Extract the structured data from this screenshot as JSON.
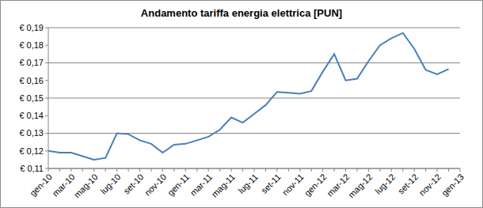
{
  "chart_data": {
    "type": "line",
    "title": "Andamento tariffa energia elettrica [PUN]",
    "categories": [
      "gen-10",
      null,
      "mar-10",
      null,
      "mag-10",
      null,
      "lug-10",
      null,
      "set-10",
      null,
      "nov-10",
      null,
      "gen-11",
      null,
      "mar-11",
      null,
      "mag-11",
      null,
      "lug-11",
      null,
      "set-11",
      null,
      "nov-11",
      null,
      "gen-12",
      null,
      "mar-12",
      null,
      "mag-12",
      null,
      "lug-12",
      null,
      "set-12",
      null,
      "nov-12",
      null,
      "gen-13"
    ],
    "values": [
      0.12,
      0.119,
      0.119,
      0.117,
      0.115,
      0.116,
      0.13,
      0.1295,
      0.126,
      0.124,
      0.119,
      0.1235,
      0.124,
      0.126,
      0.128,
      0.132,
      0.139,
      0.136,
      0.141,
      0.146,
      0.1535,
      0.153,
      0.1525,
      0.154,
      0.165,
      0.175,
      0.16,
      0.161,
      0.171,
      0.18,
      0.184,
      0.187,
      0.178,
      0.166,
      0.1635,
      0.1665,
      null
    ],
    "color": "#4a7ebb",
    "ylim": [
      0.11,
      0.19
    ],
    "yticks": [
      {
        "value": 0.11,
        "label": "€ 0,11"
      },
      {
        "value": 0.12,
        "label": "€ 0,12"
      },
      {
        "value": 0.13,
        "label": "€ 0,13"
      },
      {
        "value": 0.14,
        "label": "€ 0,14"
      },
      {
        "value": 0.15,
        "label": "€ 0,15"
      },
      {
        "value": 0.16,
        "label": "€ 0,16"
      },
      {
        "value": 0.17,
        "label": "€ 0,17"
      },
      {
        "value": 0.18,
        "label": "€ 0,18"
      },
      {
        "value": 0.19,
        "label": "€ 0,19"
      }
    ],
    "grid": true
  }
}
